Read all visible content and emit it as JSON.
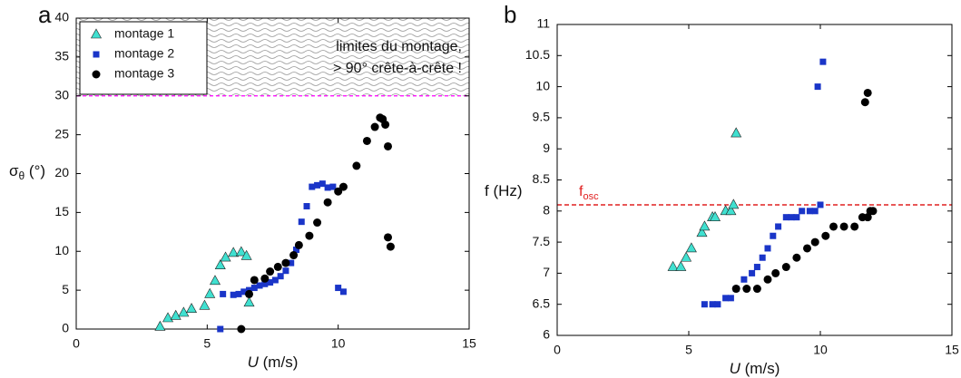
{
  "chart_data": [
    {
      "type": "scatter",
      "panel_label": "a",
      "xlabel": [
        "U",
        " (m/s)"
      ],
      "ylabel": [
        "σ",
        "θ",
        " (°)"
      ],
      "xlim": [
        0,
        15
      ],
      "ylim": [
        0,
        40
      ],
      "xticks": [
        0,
        5,
        10,
        15
      ],
      "yticks": [
        0,
        5,
        10,
        15,
        20,
        25,
        30,
        35,
        40
      ],
      "shade_above": 30,
      "limit_line": {
        "value": 30,
        "color": "#ff00ff"
      },
      "annotation": {
        "lines": [
          "limites du montage,",
          "> 90° crête-à-crête !"
        ],
        "color": "#ff00ff"
      },
      "legend": "upper left",
      "series": [
        {
          "name": "montage 1",
          "color": "#40e0d0",
          "marker": "triangle",
          "x": [
            3.2,
            3.5,
            3.8,
            4.1,
            4.4,
            4.9,
            5.1,
            5.3,
            5.5,
            5.7,
            6.0,
            6.3,
            6.5,
            6.6
          ],
          "values": [
            0.3,
            1.4,
            1.7,
            2.1,
            2.6,
            3.0,
            4.5,
            6.2,
            8.2,
            9.2,
            9.8,
            9.9,
            9.4,
            3.4
          ]
        },
        {
          "name": "montage 2",
          "color": "#1a35c8",
          "marker": "square",
          "x": [
            5.5,
            5.6,
            6.0,
            6.2,
            6.4,
            6.6,
            6.8,
            7.0,
            7.2,
            7.4,
            7.6,
            7.8,
            8.0,
            8.2,
            8.4,
            8.6,
            8.8,
            9.0,
            9.2,
            9.4,
            9.6,
            9.8,
            10.0,
            10.2
          ],
          "values": [
            0,
            4.5,
            4.4,
            4.5,
            4.8,
            5.0,
            5.3,
            5.6,
            5.8,
            6.0,
            6.3,
            6.8,
            7.5,
            8.5,
            10.2,
            13.8,
            15.8,
            18.3,
            18.5,
            18.7,
            18.2,
            18.3,
            5.3,
            4.8
          ]
        },
        {
          "name": "montage 3",
          "color": "#000000",
          "marker": "circle",
          "x": [
            6.3,
            6.6,
            6.8,
            7.2,
            7.4,
            7.7,
            8.0,
            8.3,
            8.5,
            8.9,
            9.2,
            9.6,
            10.0,
            10.2,
            10.7,
            11.1,
            11.4,
            11.6,
            11.7,
            11.8,
            11.9,
            11.9,
            12.0
          ],
          "values": [
            0,
            4.5,
            6.3,
            6.5,
            7.4,
            8.0,
            8.5,
            9.5,
            10.8,
            12.0,
            13.7,
            16.3,
            17.7,
            18.3,
            21.0,
            24.2,
            26.0,
            27.2,
            27.0,
            26.3,
            23.5,
            11.8,
            10.6
          ]
        }
      ]
    },
    {
      "type": "scatter",
      "panel_label": "b",
      "xlabel": [
        "U",
        " (m/s)"
      ],
      "ylabel": [
        "f (Hz)"
      ],
      "xlim": [
        0,
        15
      ],
      "ylim": [
        6,
        11
      ],
      "xticks": [
        0,
        5,
        10,
        15
      ],
      "yticks": [
        6,
        6.5,
        7,
        7.5,
        8,
        8.5,
        9,
        9.5,
        10,
        10.5,
        11
      ],
      "reference_line": {
        "value": 8.1,
        "label": [
          "f",
          "osc"
        ],
        "color": "#e02020"
      },
      "series": [
        {
          "color": "#40e0d0",
          "marker": "triangle",
          "x": [
            4.4,
            4.7,
            4.9,
            5.1,
            5.5,
            5.6,
            5.9,
            6.0,
            6.4,
            6.6,
            6.7,
            6.8
          ],
          "values": [
            7.1,
            7.1,
            7.25,
            7.4,
            7.65,
            7.75,
            7.9,
            7.9,
            8.0,
            8.0,
            8.1,
            9.25
          ]
        },
        {
          "color": "#1a35c8",
          "marker": "square",
          "x": [
            5.6,
            5.9,
            6.1,
            6.4,
            6.6,
            6.8,
            7.1,
            7.4,
            7.6,
            7.8,
            8.0,
            8.2,
            8.4,
            8.7,
            8.9,
            9.1,
            9.3,
            9.6,
            9.8,
            10.0,
            9.9,
            10.1
          ],
          "values": [
            6.5,
            6.5,
            6.5,
            6.6,
            6.6,
            6.75,
            6.9,
            7.0,
            7.1,
            7.25,
            7.4,
            7.6,
            7.75,
            7.9,
            7.9,
            7.9,
            8.0,
            8.0,
            8.0,
            8.1,
            10.0,
            10.4
          ]
        },
        {
          "color": "#000000",
          "marker": "circle",
          "x": [
            6.8,
            7.2,
            7.6,
            8.0,
            8.3,
            8.7,
            9.1,
            9.5,
            9.8,
            10.2,
            10.5,
            10.9,
            11.3,
            11.6,
            11.8,
            11.9,
            12.0,
            11.7,
            11.8
          ],
          "values": [
            6.75,
            6.75,
            6.75,
            6.9,
            7.0,
            7.1,
            7.25,
            7.4,
            7.5,
            7.6,
            7.75,
            7.75,
            7.75,
            7.9,
            7.9,
            8.0,
            8.0,
            9.75,
            9.9
          ]
        }
      ]
    }
  ]
}
